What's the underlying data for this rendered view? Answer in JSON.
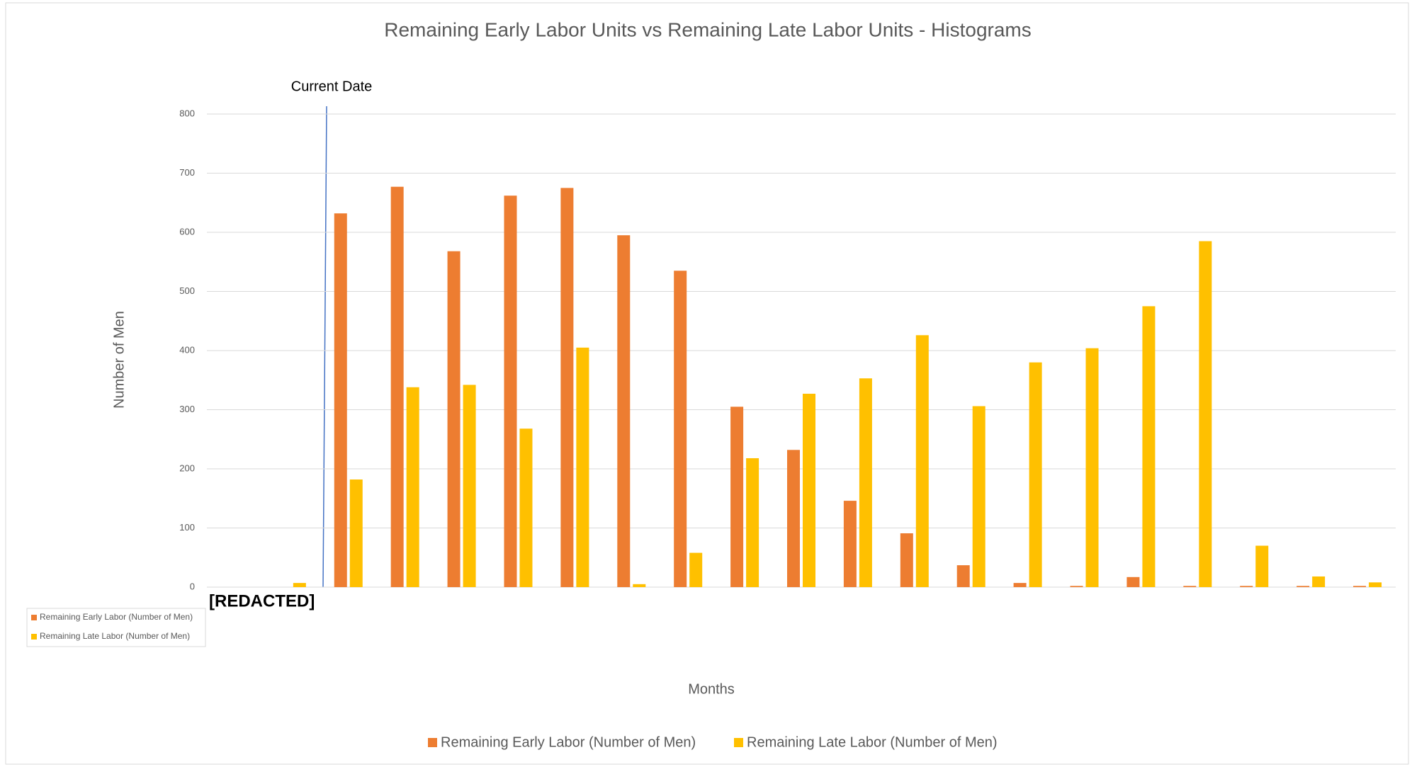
{
  "chart_data": {
    "type": "bar",
    "title": "Remaining Early Labor Units vs Remaining Late Labor Units - Histograms",
    "x_label": "Months",
    "y_label": "Number of Men",
    "categories": [
      null,
      null,
      null,
      null,
      null,
      null,
      null,
      null,
      null,
      null,
      null,
      null,
      null,
      null,
      null,
      null,
      null,
      null,
      null,
      null,
      null
    ],
    "series": [
      {
        "name": "Remaining Early Labor (Number of Men)",
        "color": "#ed7d31",
        "values": [
          0,
          0,
          632,
          677,
          568,
          662,
          675,
          595,
          535,
          305,
          232,
          146,
          91,
          37,
          7,
          2,
          17,
          2,
          2,
          2,
          2
        ]
      },
      {
        "name": "Remaining Late Labor (Number of Men)",
        "color": "#ffc000",
        "values": [
          0,
          7,
          182,
          338,
          342,
          268,
          405,
          5,
          58,
          218,
          327,
          353,
          426,
          306,
          380,
          404,
          475,
          585,
          70,
          18,
          8
        ]
      }
    ],
    "ylim": [
      0,
      800
    ],
    "yticks": [
      0,
      100,
      200,
      300,
      400,
      500,
      600,
      700,
      800
    ],
    "grid": true,
    "legend": "bottom",
    "annotations": [
      {
        "text": "Current Date"
      },
      {
        "text": "[REDACTED]"
      }
    ]
  }
}
